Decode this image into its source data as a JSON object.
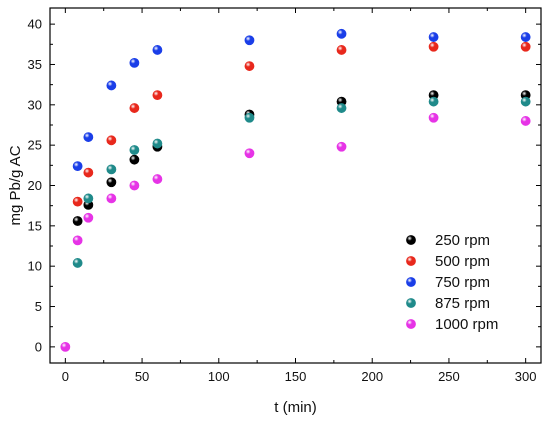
{
  "chart_data": {
    "type": "scatter",
    "xlabel": "t (min)",
    "ylabel": "mg Pb/g AC",
    "xlim": [
      -10,
      310
    ],
    "ylim": [
      -2,
      42
    ],
    "xticks": [
      0,
      50,
      100,
      150,
      200,
      250,
      300
    ],
    "yticks": [
      0,
      5,
      10,
      15,
      20,
      25,
      30,
      35,
      40
    ],
    "legend_position": "bottom-right",
    "grid": false,
    "series": [
      {
        "name": "250 rpm",
        "color": "#000000",
        "points": [
          [
            8,
            15.6
          ],
          [
            15,
            17.6
          ],
          [
            30,
            20.4
          ],
          [
            45,
            23.2
          ],
          [
            60,
            24.8
          ],
          [
            120,
            28.8
          ],
          [
            180,
            30.4
          ],
          [
            240,
            31.2
          ],
          [
            300,
            31.2
          ]
        ]
      },
      {
        "name": "500 rpm",
        "color": "#e8281c",
        "points": [
          [
            8,
            18.0
          ],
          [
            15,
            21.6
          ],
          [
            30,
            25.6
          ],
          [
            45,
            29.6
          ],
          [
            60,
            31.2
          ],
          [
            120,
            34.8
          ],
          [
            180,
            36.8
          ],
          [
            240,
            37.2
          ],
          [
            300,
            37.2
          ]
        ]
      },
      {
        "name": "750 rpm",
        "color": "#1a3ee8",
        "points": [
          [
            8,
            22.4
          ],
          [
            15,
            26.0
          ],
          [
            30,
            32.4
          ],
          [
            45,
            35.2
          ],
          [
            60,
            36.8
          ],
          [
            120,
            38.0
          ],
          [
            180,
            38.8
          ],
          [
            240,
            38.4
          ],
          [
            300,
            38.4
          ]
        ]
      },
      {
        "name": "875 rpm",
        "color": "#1f8a8a",
        "points": [
          [
            8,
            10.4
          ],
          [
            15,
            18.4
          ],
          [
            30,
            22.0
          ],
          [
            45,
            24.4
          ],
          [
            60,
            25.2
          ],
          [
            120,
            28.4
          ],
          [
            180,
            29.6
          ],
          [
            240,
            30.4
          ],
          [
            300,
            30.4
          ]
        ]
      },
      {
        "name": "1000 rpm",
        "color": "#e633e6",
        "points": [
          [
            0,
            0.0
          ],
          [
            8,
            13.2
          ],
          [
            15,
            16.0
          ],
          [
            30,
            18.4
          ],
          [
            45,
            20.0
          ],
          [
            60,
            20.8
          ],
          [
            120,
            24.0
          ],
          [
            180,
            24.8
          ],
          [
            240,
            28.4
          ],
          [
            300,
            28.0
          ]
        ]
      }
    ]
  }
}
